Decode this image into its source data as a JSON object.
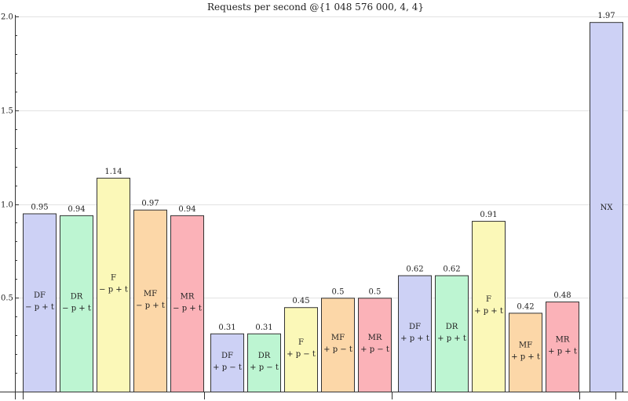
{
  "chart_data": {
    "type": "bar",
    "title": "Requests per second @{1 048 576 000, 4, 4}",
    "xlabel": "",
    "ylabel": "",
    "ylim": [
      0,
      2.0
    ],
    "yticks": [
      "0.5",
      "1.0",
      "1.5",
      "2.0"
    ],
    "ytick_values": [
      0.5,
      1.0,
      1.5,
      2.0
    ],
    "grid": true,
    "bars": [
      {
        "name": "DF",
        "sub": "− p + t",
        "value": 0.95,
        "value_label": "0.95",
        "color": "#cdd1f5",
        "group": 0
      },
      {
        "name": "DR",
        "sub": "− p + t",
        "value": 0.94,
        "value_label": "0.94",
        "color": "#bdf5d2",
        "group": 0
      },
      {
        "name": "F",
        "sub": "− p + t",
        "value": 1.14,
        "value_label": "1.14",
        "color": "#fbf8b8",
        "group": 0
      },
      {
        "name": "MF",
        "sub": "− p + t",
        "value": 0.97,
        "value_label": "0.97",
        "color": "#fcd7a8",
        "group": 0
      },
      {
        "name": "MR",
        "sub": "− p + t",
        "value": 0.94,
        "value_label": "0.94",
        "color": "#fbb2b8",
        "group": 0
      },
      {
        "name": "DF",
        "sub": "+ p − t",
        "value": 0.31,
        "value_label": "0.31",
        "color": "#cdd1f5",
        "group": 1
      },
      {
        "name": "DR",
        "sub": "+ p − t",
        "value": 0.31,
        "value_label": "0.31",
        "color": "#bdf5d2",
        "group": 1
      },
      {
        "name": "F",
        "sub": "+ p − t",
        "value": 0.45,
        "value_label": "0.45",
        "color": "#fbf8b8",
        "group": 1
      },
      {
        "name": "MF",
        "sub": "+ p − t",
        "value": 0.5,
        "value_label": "0.5",
        "color": "#fcd7a8",
        "group": 1
      },
      {
        "name": "MR",
        "sub": "+ p − t",
        "value": 0.5,
        "value_label": "0.5",
        "color": "#fbb2b8",
        "group": 1
      },
      {
        "name": "DF",
        "sub": "+ p + t",
        "value": 0.62,
        "value_label": "0.62",
        "color": "#cdd1f5",
        "group": 2
      },
      {
        "name": "DR",
        "sub": "+ p + t",
        "value": 0.62,
        "value_label": "0.62",
        "color": "#bdf5d2",
        "group": 2
      },
      {
        "name": "F",
        "sub": "+ p + t",
        "value": 0.91,
        "value_label": "0.91",
        "color": "#fbf8b8",
        "group": 2
      },
      {
        "name": "MF",
        "sub": "+ p + t",
        "value": 0.42,
        "value_label": "0.42",
        "color": "#fcd7a8",
        "group": 2
      },
      {
        "name": "MR",
        "sub": "+ p + t",
        "value": 0.48,
        "value_label": "0.48",
        "color": "#fbb2b8",
        "group": 2
      },
      {
        "name": "NX",
        "sub": "",
        "value": 1.97,
        "value_label": "1.97",
        "color": "#cdd1f5",
        "group": 3
      }
    ]
  }
}
